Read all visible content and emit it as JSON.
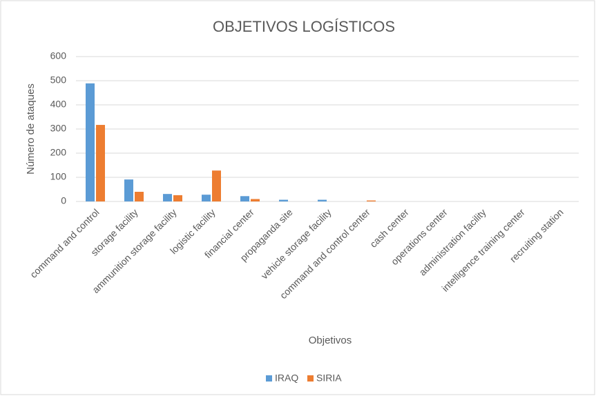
{
  "chart_data": {
    "type": "bar",
    "title": "OBJETIVOS LOGÍSTICOS",
    "x_label": "Objetivos",
    "y_label": "Número de ataques",
    "categories": [
      "command and control",
      "storage facility",
      "ammunition storage facility",
      "logistic facility",
      "financial center",
      "propaganda site",
      "vehicle storage facility",
      "command and control center",
      "cash center",
      "operations center",
      "administration facility",
      "intelligence training center",
      "recruiting station"
    ],
    "series": [
      {
        "name": "IRAQ",
        "color": "#5b9bd5",
        "values": [
          489,
          91,
          31,
          28,
          22,
          7,
          7,
          0,
          0,
          0,
          0,
          0,
          0
        ]
      },
      {
        "name": "SIRIA",
        "color": "#ed7d31",
        "values": [
          317,
          40,
          26,
          128,
          10,
          0,
          0,
          4,
          0,
          0,
          0,
          0,
          0
        ]
      }
    ],
    "ylim": [
      0,
      600
    ],
    "yticks": [
      0,
      100,
      200,
      300,
      400,
      500,
      600
    ],
    "grid": true,
    "legend": "bottom"
  }
}
